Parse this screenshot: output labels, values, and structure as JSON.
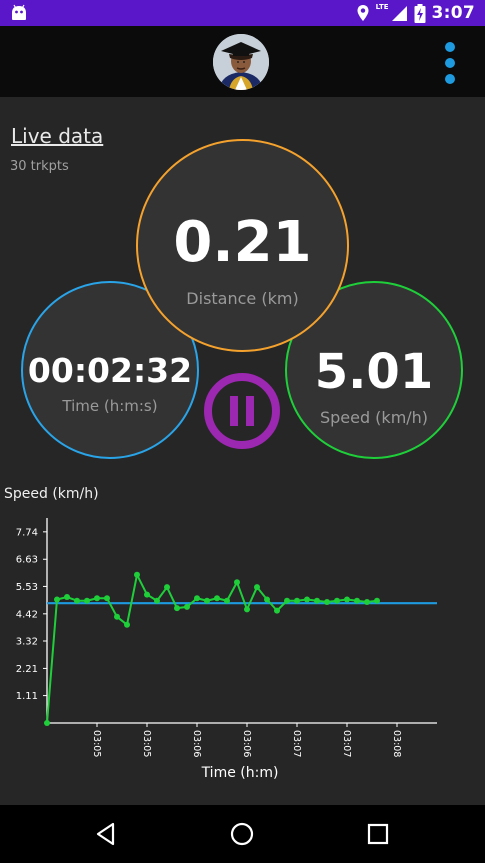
{
  "status_bar": {
    "time": "3:07",
    "network_label": "LTE",
    "icons": [
      "android-debug-icon",
      "location-icon",
      "signal-icon",
      "battery-charging-icon"
    ]
  },
  "app_bar": {
    "avatar_icon": "profile-photo",
    "menu_icon": "overflow-menu-icon",
    "accent_color": "#1e9be0"
  },
  "live": {
    "title": "Live data",
    "trkpts": "30 trkpts"
  },
  "metrics": {
    "distance": {
      "value": "0.21",
      "label": "Distance (km)",
      "color": "#f4a22d"
    },
    "time": {
      "value": "00:02:32",
      "label": "Time (h:m:s)",
      "color": "#2aa4e8"
    },
    "speed": {
      "value": "5.01",
      "label": "Speed (km/h)",
      "color": "#1fcf3a"
    }
  },
  "pause_button": {
    "icon": "pause-icon",
    "color": "#9c27b0"
  },
  "chart_data": {
    "type": "line",
    "title": "Speed (km/h)",
    "xlabel": "Time (h:m)",
    "ylabel": "Speed (km/h)",
    "yticks": [
      "1.11",
      "2.21",
      "3.32",
      "4.42",
      "5.53",
      "6.63",
      "7.74"
    ],
    "ylim": [
      0,
      8.3
    ],
    "xticks": [
      "03:05",
      "03:05",
      "03:06",
      "03:06",
      "03:07",
      "03:07",
      "03:08"
    ],
    "xlim": [
      0,
      7.8
    ],
    "average": 4.85,
    "series": [
      {
        "x": [
          0.0,
          0.2,
          0.4,
          0.6,
          0.8,
          1.0,
          1.2,
          1.4,
          1.6,
          1.8,
          2.0,
          2.2,
          2.4,
          2.6,
          2.8,
          3.0,
          3.2,
          3.4,
          3.6,
          3.8,
          4.0,
          4.2,
          4.4,
          4.6,
          4.8,
          5.0,
          5.2,
          5.4,
          5.6,
          5.8,
          6.0,
          6.2,
          6.4,
          6.6
        ],
        "values": [
          0.0,
          5.0,
          5.1,
          4.95,
          4.95,
          5.05,
          5.05,
          4.3,
          3.98,
          6.0,
          5.2,
          4.95,
          5.5,
          4.65,
          4.7,
          5.05,
          4.95,
          5.05,
          4.95,
          5.7,
          4.6,
          5.5,
          5.0,
          4.55,
          4.95,
          4.95,
          5.0,
          4.95,
          4.9,
          4.95,
          5.0,
          4.95,
          4.9,
          4.95
        ],
        "color": "#1fcf3a"
      }
    ],
    "average_line_color": "#1e9be0",
    "grid": false
  }
}
